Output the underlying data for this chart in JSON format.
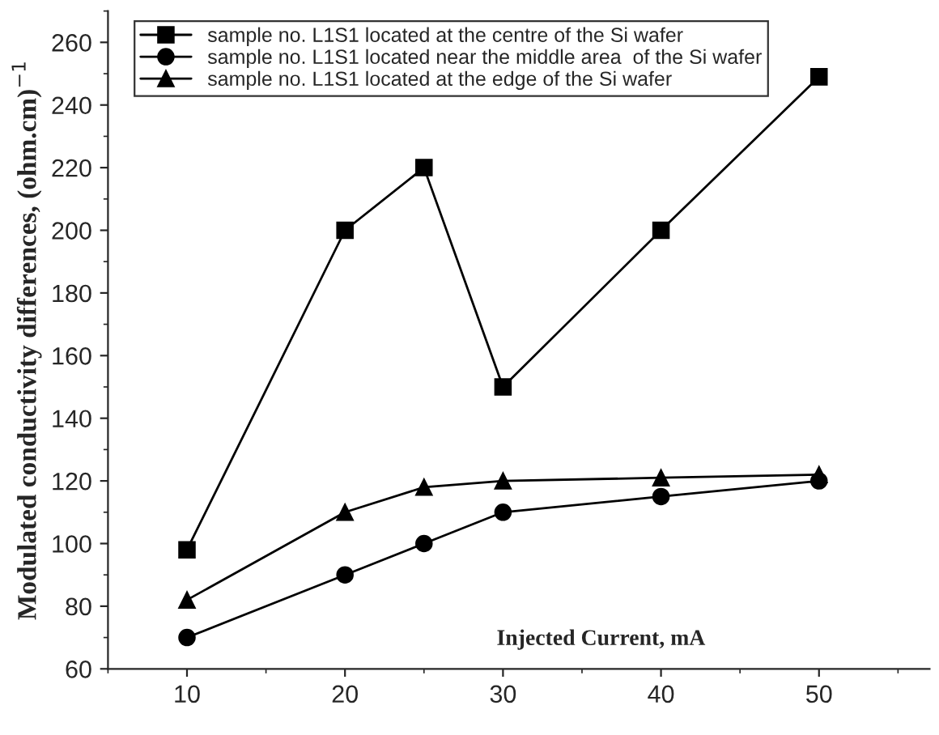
{
  "chart_data": {
    "type": "line",
    "xlabel": "Injected Current, mA",
    "ylabel": "Modulated conductivity differences, (ohm.cm)$^{−1}$",
    "x": [
      10,
      20,
      25,
      30,
      40,
      50
    ],
    "series": [
      {
        "name": "sample no. L1S1 located at the centre of the Si wafer",
        "color": "#000000",
        "marker": "square",
        "values": [
          98,
          200,
          220,
          150,
          200,
          249
        ]
      },
      {
        "name": "sample no. L1S1 located near the middle area  of the Si wafer",
        "color": "#000000",
        "marker": "circle",
        "values": [
          70,
          90,
          100,
          110,
          115,
          120
        ]
      },
      {
        "name": "sample no. L1S1 located at the edge of the Si wafer",
        "color": "#000000",
        "marker": "triangle",
        "values": [
          82,
          110,
          118,
          120,
          121,
          122
        ]
      }
    ],
    "xlim": [
      5,
      57
    ],
    "xticks": [
      10,
      20,
      30,
      40,
      50
    ],
    "ylim": [
      60,
      270
    ],
    "yticks": [
      60,
      80,
      100,
      120,
      140,
      160,
      180,
      200,
      220,
      240,
      260
    ],
    "legend": "top left",
    "grid": false,
    "line_style": "solid"
  }
}
